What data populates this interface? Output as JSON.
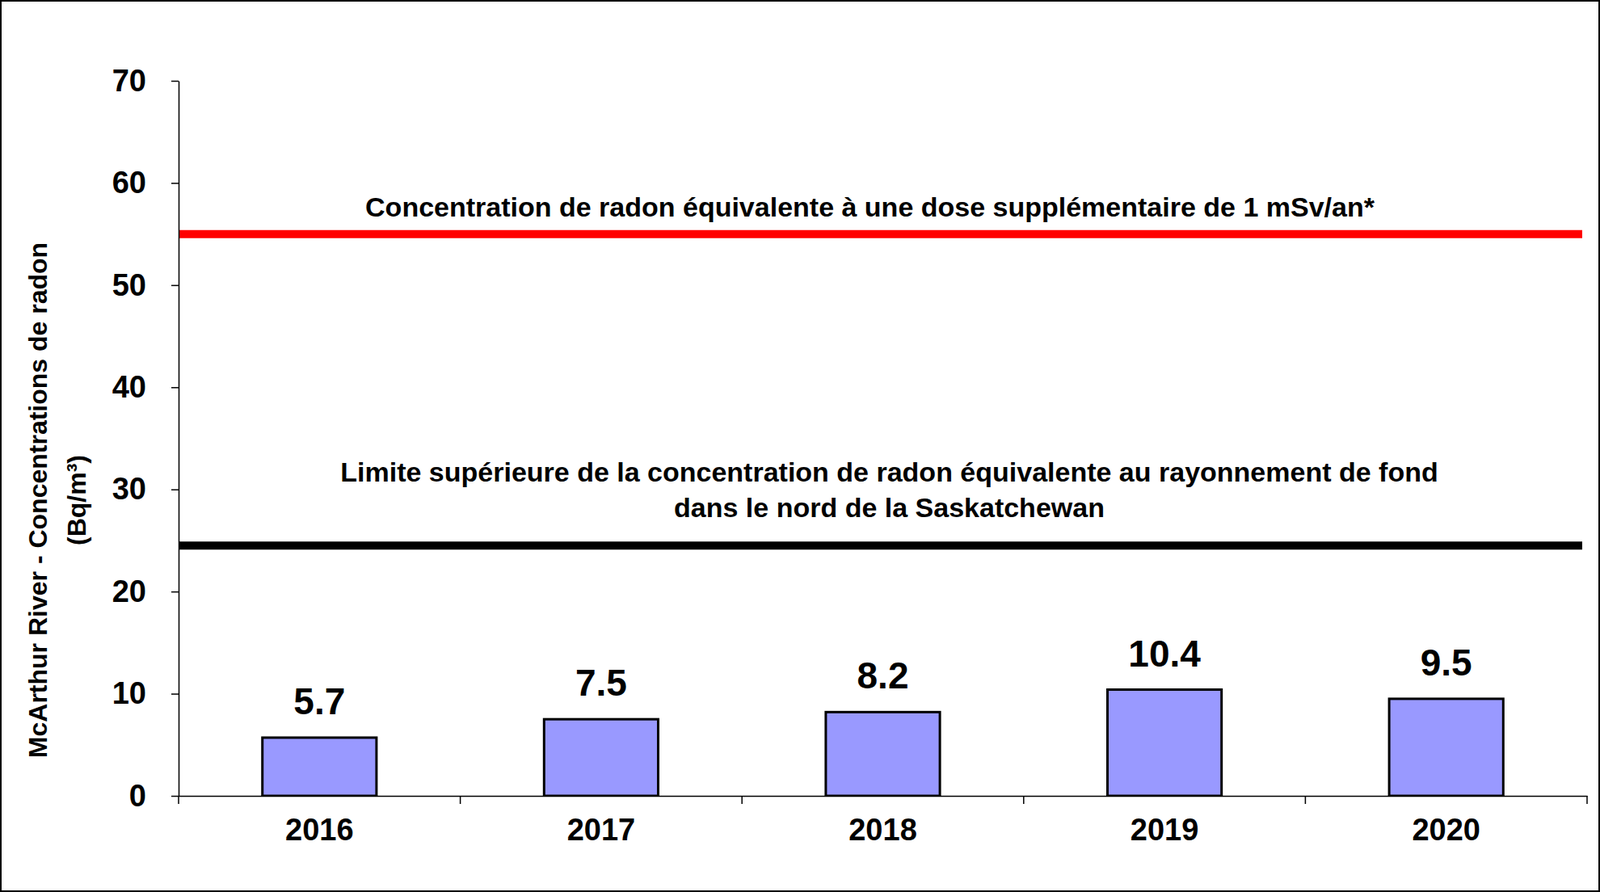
{
  "chart_data": {
    "type": "bar",
    "y_label": [
      "McArthur River - Concentrations de radon",
      "(Bq/m³)"
    ],
    "categories": [
      "2016",
      "2017",
      "2018",
      "2019",
      "2020"
    ],
    "values": [
      5.7,
      7.5,
      8.2,
      10.4,
      9.5
    ],
    "color": "#9999ff",
    "ylim": [
      0,
      70
    ],
    "yticks": [
      0,
      10,
      20,
      30,
      40,
      50,
      60,
      70
    ],
    "grid": false,
    "data_labels": true,
    "annotations": [
      {
        "value": 55,
        "color": "#ff0000",
        "text": [
          "Concentration de radon équivalente à une dose supplémentaire de 1 mSv/an*"
        ]
      },
      {
        "value": 24.5,
        "color": "#000000",
        "text": [
          "Limite supérieure de la concentration de radon équivalente au rayonnement de fond",
          "dans le nord de la Saskatchewan"
        ]
      }
    ]
  }
}
